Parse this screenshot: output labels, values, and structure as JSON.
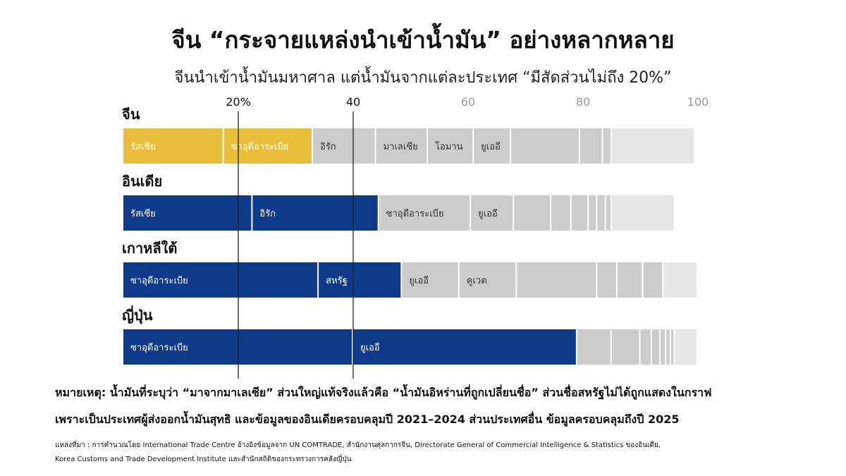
{
  "title": "จีน “กระจายแหล่งนำเข้าน้ำมัน” อย่างหลากหลาย",
  "subtitle": "จีนนำเข้าน้ำมันมหาศาล แต่น้ำมันจากแต่ละประเทศ “มีสัดส่วนไม่ถึง 20%”",
  "colors": {
    "highlight_china": "#E8BE3A",
    "highlight_other": "#0E3A8A",
    "other": "#CCCCCC",
    "tail": "#E6E6E6",
    "gridline": "#222222"
  },
  "chart_data": {
    "type": "bar",
    "stacked": true,
    "orientation": "horizontal",
    "xlim": [
      0,
      100
    ],
    "x_ticks": [
      "20%",
      "40",
      "60",
      "80",
      "100"
    ],
    "x_tick_values": [
      20,
      40,
      60,
      80,
      100
    ],
    "rows": [
      {
        "name": "จีน",
        "highlight": "china",
        "segments": [
          {
            "label": "รัสเซีย",
            "value": 17.5,
            "highlight": true
          },
          {
            "label": "ซาอุดีอาระเบีย",
            "value": 15.5,
            "highlight": true
          },
          {
            "label": "อิรัก",
            "value": 11,
            "highlight": false
          },
          {
            "label": "มาเลเซีย",
            "value": 9,
            "highlight": false
          },
          {
            "label": "โอมาน",
            "value": 8,
            "highlight": false
          },
          {
            "label": "ยูเออี",
            "value": 6.5,
            "highlight": false
          },
          {
            "label": "",
            "value": 12,
            "highlight": false
          },
          {
            "label": "",
            "value": 4,
            "highlight": false
          },
          {
            "label": "",
            "value": 1.5,
            "highlight": false
          },
          {
            "label": "",
            "value": 14.5,
            "tail": true
          }
        ]
      },
      {
        "name": "อินเดีย",
        "highlight": "other",
        "segments": [
          {
            "label": "รัสเซีย",
            "value": 22.5,
            "highlight": true
          },
          {
            "label": "อิรัก",
            "value": 22,
            "highlight": true
          },
          {
            "label": "ซาอุดีอาระเบีย",
            "value": 16,
            "highlight": false
          },
          {
            "label": "ยูเออี",
            "value": 7.5,
            "highlight": false
          },
          {
            "label": "",
            "value": 6.5,
            "highlight": false
          },
          {
            "label": "",
            "value": 3.5,
            "highlight": false
          },
          {
            "label": "",
            "value": 3,
            "highlight": false
          },
          {
            "label": "",
            "value": 1.5,
            "highlight": false
          },
          {
            "label": "",
            "value": 1.5,
            "highlight": false
          },
          {
            "label": "",
            "value": 1,
            "highlight": false
          },
          {
            "label": "",
            "value": 11,
            "tail": true
          }
        ]
      },
      {
        "name": "เกาหลีใต้",
        "highlight": "other",
        "segments": [
          {
            "label": "ซาอุดีอาระเบีย",
            "value": 34,
            "highlight": true
          },
          {
            "label": "สหรัฐ",
            "value": 14.5,
            "highlight": true
          },
          {
            "label": "ยูเออี",
            "value": 10,
            "highlight": false
          },
          {
            "label": "คูเวต",
            "value": 10,
            "highlight": false
          },
          {
            "label": "",
            "value": 14,
            "highlight": false
          },
          {
            "label": "",
            "value": 3.5,
            "highlight": false
          },
          {
            "label": "",
            "value": 4.5,
            "highlight": false
          },
          {
            "label": "",
            "value": 3.5,
            "highlight": false
          },
          {
            "label": "",
            "value": 6,
            "tail": true
          }
        ]
      },
      {
        "name": "ญี่ปุ่น",
        "highlight": "other",
        "segments": [
          {
            "label": "ซาอุดีอาระเบีย",
            "value": 40,
            "highlight": true
          },
          {
            "label": "ยูเออี",
            "value": 39,
            "highlight": true
          },
          {
            "label": "",
            "value": 6,
            "highlight": false
          },
          {
            "label": "",
            "value": 5,
            "highlight": false
          },
          {
            "label": "",
            "value": 2,
            "highlight": false
          },
          {
            "label": "",
            "value": 1.5,
            "highlight": false
          },
          {
            "label": "",
            "value": 1,
            "highlight": false
          },
          {
            "label": "",
            "value": 0.8,
            "highlight": false
          },
          {
            "label": "",
            "value": 0.7,
            "highlight": false
          },
          {
            "label": "",
            "value": 4,
            "tail": true
          }
        ]
      }
    ]
  },
  "note_line1": "หมายเหตุ: น้ำมันที่ระบุว่า “มาจากมาเลเซีย” ส่วนใหญ่แท้จริงแล้วคือ “น้ำมันอิหร่านที่ถูกเปลี่ยนชื่อ” ส่วนชื่อสหรัฐไม่ได้ถูกแสดงในกราฟ",
  "note_line2": "เพราะเป็นประเทศผู้ส่งออกน้ำมันสุทธิ และข้อมูลของอินเดียครอบคลุมปี 2021–2024 ส่วนประเทศอื่น ข้อมูลครอบคลุมถึงปี 2025",
  "source_line1": "แหล่งที่มา : การคำนวณโดย International Trade Centre อ้างอิงข้อมูลจาก UN COMTRADE, สำนักงานศุลกากรจีน, Directorate General of Commercial Intelligence & Statistics ของอินเดีย,",
  "source_line2": "Korea Customs and Trade Development Institute และสำนักสถิติของกระทรวงการคลังญี่ปุ่น"
}
